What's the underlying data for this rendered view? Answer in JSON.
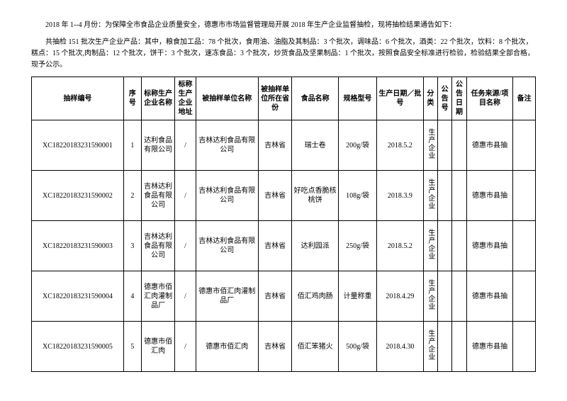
{
  "intro": {
    "p1": "2018 年 1--4 月份：为保障全市食品企业质量安全，德惠市市场监督管理局开展 2018 年生产企业监督抽检，现将抽检结果通告如下：",
    "p2": "共抽检 151 批次生产企业产品：其中，粮食加工品：78 个批次，食用油、油脂及其制品：3 个批次，调味品：6 个批次，酒类：22 个批次，饮料：8 个批次，糕点：15 个批次,肉制品：12 个批次，饼干：3 个批次，速冻食品：3 个批次，炒货食品及坚果制品：1 个批次，按照食品安全标准进行检验，检验结果全部合格，现予公示。"
  },
  "headers": [
    "抽样编号",
    "序号",
    "标称生产企业名称",
    "标称生产企业地址",
    "被抽样单位名称",
    "被抽样单位所在省份",
    "食品名称",
    "规格型号",
    "生产日期／批号",
    "分类",
    "公告号",
    "公告日期",
    "任务来源/项目名称",
    "备注"
  ],
  "columns": {
    "widths": [
      115,
      22,
      42,
      26,
      78,
      42,
      58,
      48,
      58,
      18,
      18,
      18,
      58,
      28
    ]
  },
  "rows": [
    [
      "XC18220183231590001",
      "1",
      "达利食品有限公司",
      "/",
      "吉林达利食品有限公司",
      "吉林省",
      "瑞士卷",
      "200g/袋",
      "2018.5.2",
      "生产企业",
      "",
      "",
      "德惠市县抽",
      ""
    ],
    [
      "XC18220183231590002",
      "2",
      "吉林达利食品有限公司",
      "/",
      "吉林达利食品有限公司",
      "吉林省",
      "好吃点香脆核桃饼",
      "108g/袋",
      "2018.3.9",
      "生产企业",
      "",
      "",
      "德惠市县抽",
      ""
    ],
    [
      "XC18220183231590003",
      "3",
      "吉林达利食品有限公司",
      "/",
      "吉林达利食品有限公司",
      "吉林省",
      "达利园派",
      "250g/袋",
      "2018.5.2",
      "生产企业",
      "",
      "",
      "德惠市县抽",
      ""
    ],
    [
      "XC18220183231590004",
      "4",
      "德惠市佰汇肉灌制品厂",
      "/",
      "德惠市佰汇肉灌制品厂",
      "吉林省",
      "佰汇鸡肉肠",
      "计量称重",
      "2018.4.29",
      "生产企业",
      "",
      "",
      "德惠市县抽",
      ""
    ],
    [
      "XC18220183231590005",
      "5",
      "德惠市佰汇肉",
      "/",
      "德惠市佰汇肉",
      "吉林省",
      "佰汇笨猪火",
      "500g/袋",
      "2018.4.30",
      "生产企业",
      "",
      "",
      "德惠市县抽",
      ""
    ]
  ]
}
